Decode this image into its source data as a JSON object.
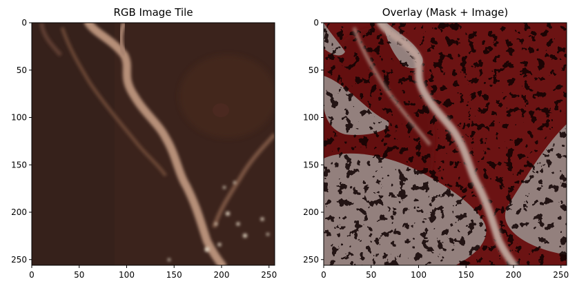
{
  "figure": {
    "panels": [
      {
        "id": "rgb",
        "title": "RGB Image Tile",
        "x_ticks": [
          0,
          50,
          100,
          150,
          200,
          250
        ],
        "y_ticks": [
          0,
          50,
          100,
          150,
          200,
          250
        ],
        "extent": [
          0,
          256
        ]
      },
      {
        "id": "overlay",
        "title": "Overlay (Mask + Image)",
        "x_ticks": [
          0,
          50,
          100,
          150,
          200,
          250
        ],
        "y_ticks": [
          0,
          50,
          100,
          150,
          200,
          250
        ],
        "extent": [
          0,
          256
        ]
      }
    ]
  },
  "colors": {
    "soil_dark": "#3a221b",
    "soil_mid": "#4a2c22",
    "river_light": "#b9907a",
    "mask_red": "#6b1212",
    "mask_gray": "#9b9390",
    "highlight": "#e8dcc8"
  }
}
